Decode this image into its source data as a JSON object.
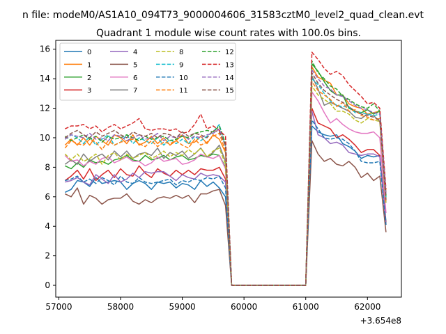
{
  "chart_data": {
    "type": "line",
    "suptitle": "n file: modeM0/AS1A10_094T73_9000004606_31583cztM0_level2_quad_clean.evt",
    "title": "Quadrant 1 module wise count rates with 100.0s bins.",
    "xlabel": "",
    "ylabel": "",
    "x_offset_label": "+3.654e8",
    "xlim": [
      56950,
      62550
    ],
    "ylim": [
      -0.8,
      16.6
    ],
    "xticks": [
      57000,
      58000,
      59000,
      60000,
      61000,
      62000
    ],
    "yticks": [
      0,
      2,
      4,
      6,
      8,
      10,
      12,
      14,
      16
    ],
    "grid": false,
    "legend": {
      "placement": "upper-left",
      "columns": 4
    },
    "x": [
      57100,
      57200,
      57300,
      57400,
      57500,
      57600,
      57700,
      57800,
      57900,
      58000,
      58100,
      58200,
      58300,
      58400,
      58500,
      58600,
      58700,
      58800,
      58900,
      59000,
      59100,
      59200,
      59300,
      59400,
      59500,
      59600,
      59700,
      59800,
      59900,
      60000,
      60100,
      60200,
      60300,
      60400,
      60500,
      60600,
      60700,
      60800,
      60900,
      61000,
      61100,
      61200,
      61300,
      61400,
      61500,
      61600,
      61700,
      61800,
      61900,
      62000,
      62100,
      62200,
      62300
    ],
    "series": [
      {
        "name": "0",
        "color": "#1f77b4",
        "dash": "solid",
        "values": [
          6.3,
          6.5,
          7.1,
          7.0,
          6.7,
          7.3,
          6.9,
          7.0,
          7.1,
          7.0,
          6.5,
          6.9,
          7.1,
          6.9,
          6.5,
          7.0,
          6.9,
          7.0,
          6.6,
          6.9,
          6.8,
          6.5,
          7.1,
          6.7,
          7.0,
          6.6,
          6.0,
          0,
          0,
          0,
          0,
          0,
          0,
          0,
          0,
          0,
          0,
          0,
          0,
          0,
          10.8,
          10.4,
          10.2,
          10.1,
          10.2,
          9.6,
          9.4,
          9.1,
          8.6,
          8.8,
          8.7,
          8.8,
          4.3
        ]
      },
      {
        "name": "1",
        "color": "#ff7f0e",
        "dash": "solid",
        "values": [
          9.5,
          9.9,
          9.5,
          10.0,
          9.5,
          10.1,
          9.8,
          9.5,
          10.2,
          10.0,
          9.6,
          10.2,
          9.5,
          9.7,
          10.1,
          9.6,
          10.0,
          9.5,
          9.8,
          10.2,
          9.6,
          9.7,
          10.1,
          9.6,
          10.2,
          9.9,
          9.0,
          0,
          0,
          0,
          0,
          0,
          0,
          0,
          0,
          0,
          0,
          0,
          0,
          0,
          14.8,
          14.1,
          13.9,
          13.7,
          12.9,
          12.9,
          12.3,
          12.1,
          12.0,
          11.6,
          11.7,
          11.8,
          6.3
        ]
      },
      {
        "name": "2",
        "color": "#2ca02c",
        "dash": "solid",
        "values": [
          8.1,
          7.9,
          8.3,
          8.0,
          8.5,
          8.3,
          8.4,
          8.2,
          8.5,
          8.6,
          8.8,
          8.5,
          8.4,
          8.8,
          8.5,
          8.6,
          8.8,
          8.5,
          8.7,
          8.8,
          8.5,
          8.6,
          8.8,
          8.7,
          8.9,
          8.8,
          8.0,
          0,
          0,
          0,
          0,
          0,
          0,
          0,
          0,
          0,
          0,
          0,
          0,
          0,
          15.0,
          14.5,
          13.8,
          13.2,
          12.9,
          12.9,
          12.0,
          11.8,
          11.7,
          11.9,
          11.6,
          11.8,
          6.0
        ]
      },
      {
        "name": "3",
        "color": "#d62728",
        "dash": "solid",
        "values": [
          7.1,
          7.4,
          7.8,
          7.2,
          7.9,
          7.1,
          7.5,
          7.8,
          7.3,
          7.9,
          7.5,
          7.4,
          8.1,
          7.6,
          7.3,
          7.9,
          7.6,
          7.4,
          7.8,
          7.5,
          7.8,
          7.5,
          7.9,
          7.8,
          7.8,
          8.0,
          7.2,
          0,
          0,
          0,
          0,
          0,
          0,
          0,
          0,
          0,
          0,
          0,
          0,
          0,
          12.0,
          11.0,
          10.8,
          10.6,
          10.0,
          10.2,
          9.9,
          9.5,
          9.0,
          9.2,
          9.2,
          8.8,
          4.2
        ]
      },
      {
        "name": "4",
        "color": "#9467bd",
        "dash": "solid",
        "values": [
          7.0,
          7.1,
          7.3,
          7.0,
          6.8,
          7.5,
          7.2,
          6.9,
          7.5,
          7.0,
          7.2,
          7.6,
          7.3,
          7.7,
          7.6,
          7.7,
          7.7,
          7.4,
          7.1,
          7.5,
          7.3,
          7.2,
          7.6,
          7.4,
          7.5,
          7.4,
          7.0,
          0,
          0,
          0,
          0,
          0,
          0,
          0,
          0,
          0,
          0,
          0,
          0,
          0,
          11.8,
          10.2,
          10.0,
          9.6,
          9.7,
          9.5,
          9.0,
          8.9,
          8.8,
          8.9,
          8.9,
          8.7,
          4.1
        ]
      },
      {
        "name": "5",
        "color": "#8c564b",
        "dash": "solid",
        "values": [
          6.2,
          6.0,
          6.6,
          5.5,
          6.1,
          5.9,
          5.5,
          5.8,
          5.9,
          5.9,
          6.2,
          5.7,
          5.5,
          5.8,
          5.6,
          5.9,
          6.0,
          5.9,
          6.1,
          5.9,
          6.1,
          5.6,
          6.2,
          6.2,
          6.4,
          6.5,
          5.4,
          0,
          0,
          0,
          0,
          0,
          0,
          0,
          0,
          0,
          0,
          0,
          0,
          0,
          9.8,
          8.9,
          8.4,
          8.6,
          8.2,
          8.1,
          8.4,
          8.0,
          7.3,
          7.6,
          7.1,
          7.4,
          3.6
        ]
      },
      {
        "name": "6",
        "color": "#e377c2",
        "dash": "solid",
        "values": [
          8.8,
          8.4,
          8.5,
          8.1,
          8.4,
          8.2,
          8.6,
          8.7,
          8.3,
          8.5,
          8.7,
          8.4,
          8.4,
          8.1,
          8.3,
          8.7,
          8.4,
          8.5,
          8.6,
          8.2,
          8.3,
          8.5,
          8.9,
          8.7,
          8.6,
          8.8,
          7.9,
          0,
          0,
          0,
          0,
          0,
          0,
          0,
          0,
          0,
          0,
          0,
          0,
          0,
          13.1,
          12.5,
          11.7,
          11.0,
          11.3,
          10.9,
          10.6,
          10.4,
          10.3,
          10.3,
          10.4,
          10.0,
          4.9
        ]
      },
      {
        "name": "7",
        "color": "#7f7f7f",
        "dash": "solid",
        "values": [
          8.2,
          8.5,
          8.2,
          8.9,
          8.4,
          8.7,
          8.9,
          8.5,
          9.1,
          8.7,
          9.1,
          8.6,
          8.9,
          9.0,
          8.8,
          9.3,
          8.6,
          9.0,
          8.8,
          9.1,
          8.6,
          8.9,
          9.3,
          8.7,
          9.0,
          9.5,
          8.4,
          0,
          0,
          0,
          0,
          0,
          0,
          0,
          0,
          0,
          0,
          0,
          0,
          0,
          14.2,
          13.3,
          12.2,
          12.4,
          12.2,
          12.0,
          11.8,
          11.4,
          11.3,
          11.6,
          11.5,
          11.1,
          5.6
        ]
      },
      {
        "name": "8",
        "color": "#bcbd22",
        "dash": "dashed",
        "values": [
          8.9,
          8.5,
          8.9,
          8.4,
          8.6,
          8.9,
          8.2,
          8.8,
          9.0,
          8.5,
          8.9,
          8.6,
          8.8,
          9.0,
          8.6,
          8.8,
          9.1,
          8.7,
          9.0,
          8.8,
          9.2,
          8.9,
          9.3,
          8.7,
          9.1,
          9.3,
          8.2,
          0,
          0,
          0,
          0,
          0,
          0,
          0,
          0,
          0,
          0,
          0,
          0,
          0,
          13.5,
          12.9,
          12.6,
          12.3,
          11.8,
          11.8,
          11.6,
          11.2,
          11.0,
          11.3,
          11.2,
          11.1,
          5.5
        ]
      },
      {
        "name": "9",
        "color": "#17becf",
        "dash": "dashed",
        "values": [
          9.9,
          10.2,
          10.0,
          9.6,
          10.1,
          9.5,
          9.9,
          10.2,
          9.5,
          9.7,
          10.2,
          9.6,
          10.0,
          9.8,
          9.6,
          10.0,
          9.5,
          9.9,
          9.6,
          9.9,
          9.6,
          10.1,
          9.8,
          10.1,
          10.4,
          10.9,
          9.4,
          0,
          0,
          0,
          0,
          0,
          0,
          0,
          0,
          0,
          0,
          0,
          0,
          0,
          14.0,
          13.6,
          13.0,
          12.5,
          12.2,
          12.1,
          12.1,
          11.7,
          11.7,
          11.6,
          11.5,
          11.6,
          5.9
        ]
      },
      {
        "name": "10",
        "color": "#1f77b4",
        "dash": "dashed",
        "values": [
          7.1,
          7.2,
          7.4,
          7.0,
          7.2,
          6.9,
          7.3,
          7.1,
          6.8,
          7.4,
          7.0,
          6.9,
          7.3,
          7.0,
          6.9,
          7.0,
          7.1,
          7.2,
          6.8,
          7.1,
          7.0,
          7.2,
          7.1,
          7.3,
          7.2,
          7.4,
          6.6,
          0,
          0,
          0,
          0,
          0,
          0,
          0,
          0,
          0,
          0,
          0,
          0,
          0,
          11.2,
          10.6,
          10.0,
          9.9,
          10.0,
          9.9,
          9.6,
          9.1,
          8.4,
          8.3,
          8.3,
          8.4,
          4.1
        ]
      },
      {
        "name": "11",
        "color": "#ff7f0e",
        "dash": "dashed",
        "values": [
          9.3,
          9.8,
          9.6,
          9.5,
          9.9,
          9.7,
          9.2,
          9.8,
          9.5,
          9.7,
          9.8,
          9.9,
          9.6,
          9.4,
          9.8,
          9.4,
          9.7,
          9.6,
          9.8,
          9.5,
          9.3,
          9.9,
          9.5,
          9.7,
          10.1,
          10.3,
          9.1,
          0,
          0,
          0,
          0,
          0,
          0,
          0,
          0,
          0,
          0,
          0,
          0,
          0,
          13.8,
          13.2,
          12.9,
          12.6,
          12.1,
          12.4,
          11.8,
          11.9,
          11.5,
          11.4,
          11.2,
          11.3,
          5.7
        ]
      },
      {
        "name": "12",
        "color": "#2ca02c",
        "dash": "dashed",
        "values": [
          10.1,
          9.8,
          10.0,
          10.2,
          9.9,
          10.1,
          9.7,
          10.1,
          9.9,
          10.0,
          10.2,
          10.0,
          9.8,
          10.1,
          9.9,
          10.0,
          10.1,
          9.8,
          9.9,
          10.1,
          10.0,
          10.3,
          10.4,
          10.5,
          10.4,
          10.8,
          9.6,
          0,
          0,
          0,
          0,
          0,
          0,
          0,
          0,
          0,
          0,
          0,
          0,
          0,
          15.2,
          14.4,
          14.0,
          13.5,
          13.3,
          12.8,
          12.6,
          12.3,
          12.1,
          12.0,
          12.3,
          11.8,
          6.1
        ]
      },
      {
        "name": "13",
        "color": "#d62728",
        "dash": "dashed",
        "values": [
          10.6,
          10.8,
          10.8,
          10.9,
          10.6,
          10.8,
          10.4,
          10.7,
          10.9,
          10.6,
          10.8,
          11.0,
          11.3,
          10.6,
          10.5,
          10.6,
          10.6,
          10.5,
          10.6,
          10.3,
          10.4,
          10.9,
          11.6,
          10.6,
          10.8,
          10.5,
          10.1,
          0,
          0,
          0,
          0,
          0,
          0,
          0,
          0,
          0,
          0,
          0,
          0,
          0,
          15.8,
          15.3,
          14.7,
          14.3,
          14.5,
          14.2,
          13.6,
          13.2,
          12.8,
          12.3,
          12.4,
          12.0,
          6.5
        ]
      },
      {
        "name": "14",
        "color": "#9467bd",
        "dash": "dashed",
        "values": [
          9.9,
          10.2,
          10.1,
          10.0,
          10.3,
          9.9,
          10.0,
          9.8,
          10.2,
          10.1,
          9.8,
          10.0,
          10.2,
          9.9,
          10.0,
          10.3,
          9.8,
          10.1,
          10.0,
          10.2,
          9.9,
          10.1,
          10.0,
          10.2,
          10.3,
          10.6,
          9.4,
          0,
          0,
          0,
          0,
          0,
          0,
          0,
          0,
          0,
          0,
          0,
          0,
          0,
          14.6,
          14.0,
          13.5,
          13.3,
          12.9,
          12.8,
          12.5,
          12.2,
          12.0,
          11.9,
          11.7,
          11.6,
          6.2
        ]
      },
      {
        "name": "15",
        "color": "#8c564b",
        "dash": "dashed",
        "values": [
          10.0,
          10.3,
          10.5,
          10.2,
          10.0,
          10.4,
          10.1,
          10.3,
          10.5,
          10.2,
          10.0,
          10.4,
          10.2,
          10.1,
          10.3,
          10.0,
          10.3,
          10.2,
          10.0,
          10.4,
          10.1,
          10.3,
          10.2,
          10.0,
          10.5,
          10.4,
          9.5,
          0,
          0,
          0,
          0,
          0,
          0,
          0,
          0,
          0,
          0,
          0,
          0,
          0,
          14.4,
          13.7,
          13.2,
          12.9,
          12.6,
          12.4,
          12.1,
          11.8,
          11.6,
          11.5,
          11.4,
          11.2,
          5.8
        ]
      }
    ]
  }
}
